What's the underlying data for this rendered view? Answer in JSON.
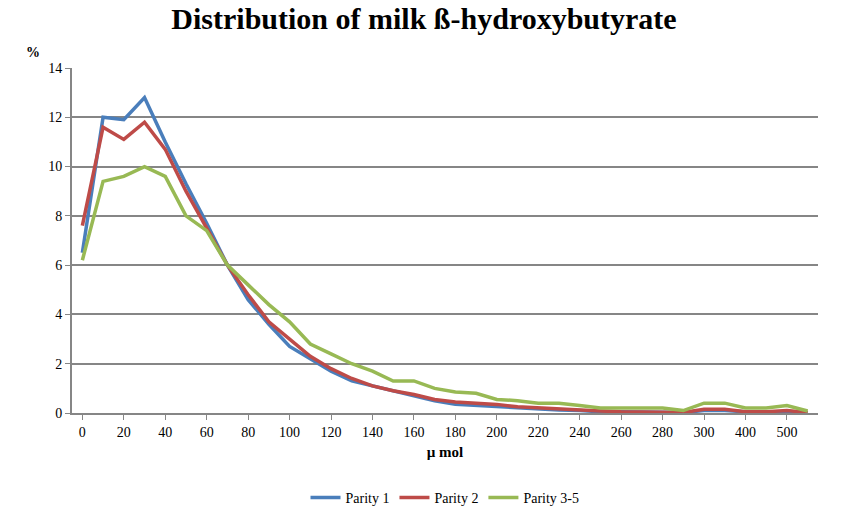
{
  "chart_data": {
    "type": "line",
    "title": "Distribution of milk ß-hydroxybutyrate",
    "x_label": "µ mol",
    "y_label": "%",
    "categories": [
      "0",
      null,
      "20",
      null,
      "40",
      null,
      "60",
      null,
      "80",
      null,
      "100",
      null,
      "120",
      null,
      "140",
      null,
      "160",
      null,
      "180",
      null,
      "200",
      null,
      "220",
      null,
      "240",
      null,
      "260",
      null,
      "280",
      null,
      "300",
      null,
      "400",
      null,
      "500",
      null
    ],
    "series": [
      {
        "name": "Parity 1",
        "color": "#4a7ebb",
        "values": [
          6.5,
          12.0,
          11.9,
          12.8,
          11.0,
          9.3,
          7.7,
          6.0,
          4.6,
          3.6,
          2.7,
          2.2,
          1.7,
          1.3,
          1.1,
          0.9,
          0.7,
          0.5,
          0.35,
          0.3,
          0.25,
          0.2,
          0.15,
          0.12,
          0.1,
          0.05,
          0.05,
          0.05,
          0.05,
          0.02,
          0.1,
          0.1,
          0.05,
          0.05,
          0.05,
          0.02
        ]
      },
      {
        "name": "Parity 2",
        "color": "#be4b48",
        "values": [
          7.6,
          11.6,
          11.1,
          11.8,
          10.7,
          9.0,
          7.5,
          6.0,
          4.8,
          3.7,
          3.0,
          2.3,
          1.8,
          1.4,
          1.1,
          0.9,
          0.75,
          0.55,
          0.45,
          0.4,
          0.35,
          0.25,
          0.2,
          0.15,
          0.1,
          0.08,
          0.05,
          0.05,
          0.05,
          0.02,
          0.15,
          0.15,
          0.05,
          0.05,
          0.1,
          0.02
        ]
      },
      {
        "name": "Parity 3-5",
        "color": "#98b954",
        "values": [
          6.2,
          9.4,
          9.6,
          10.0,
          9.6,
          8.0,
          7.4,
          6.0,
          5.2,
          4.4,
          3.7,
          2.8,
          2.4,
          2.0,
          1.7,
          1.3,
          1.3,
          1.0,
          0.85,
          0.8,
          0.55,
          0.5,
          0.4,
          0.4,
          0.3,
          0.2,
          0.2,
          0.2,
          0.2,
          0.1,
          0.4,
          0.4,
          0.2,
          0.2,
          0.3,
          0.08
        ]
      }
    ],
    "ylim": [
      0,
      14
    ],
    "yticks": [
      0,
      2,
      4,
      6,
      8,
      10,
      12,
      14
    ],
    "grid": true,
    "legend": "bottom"
  }
}
